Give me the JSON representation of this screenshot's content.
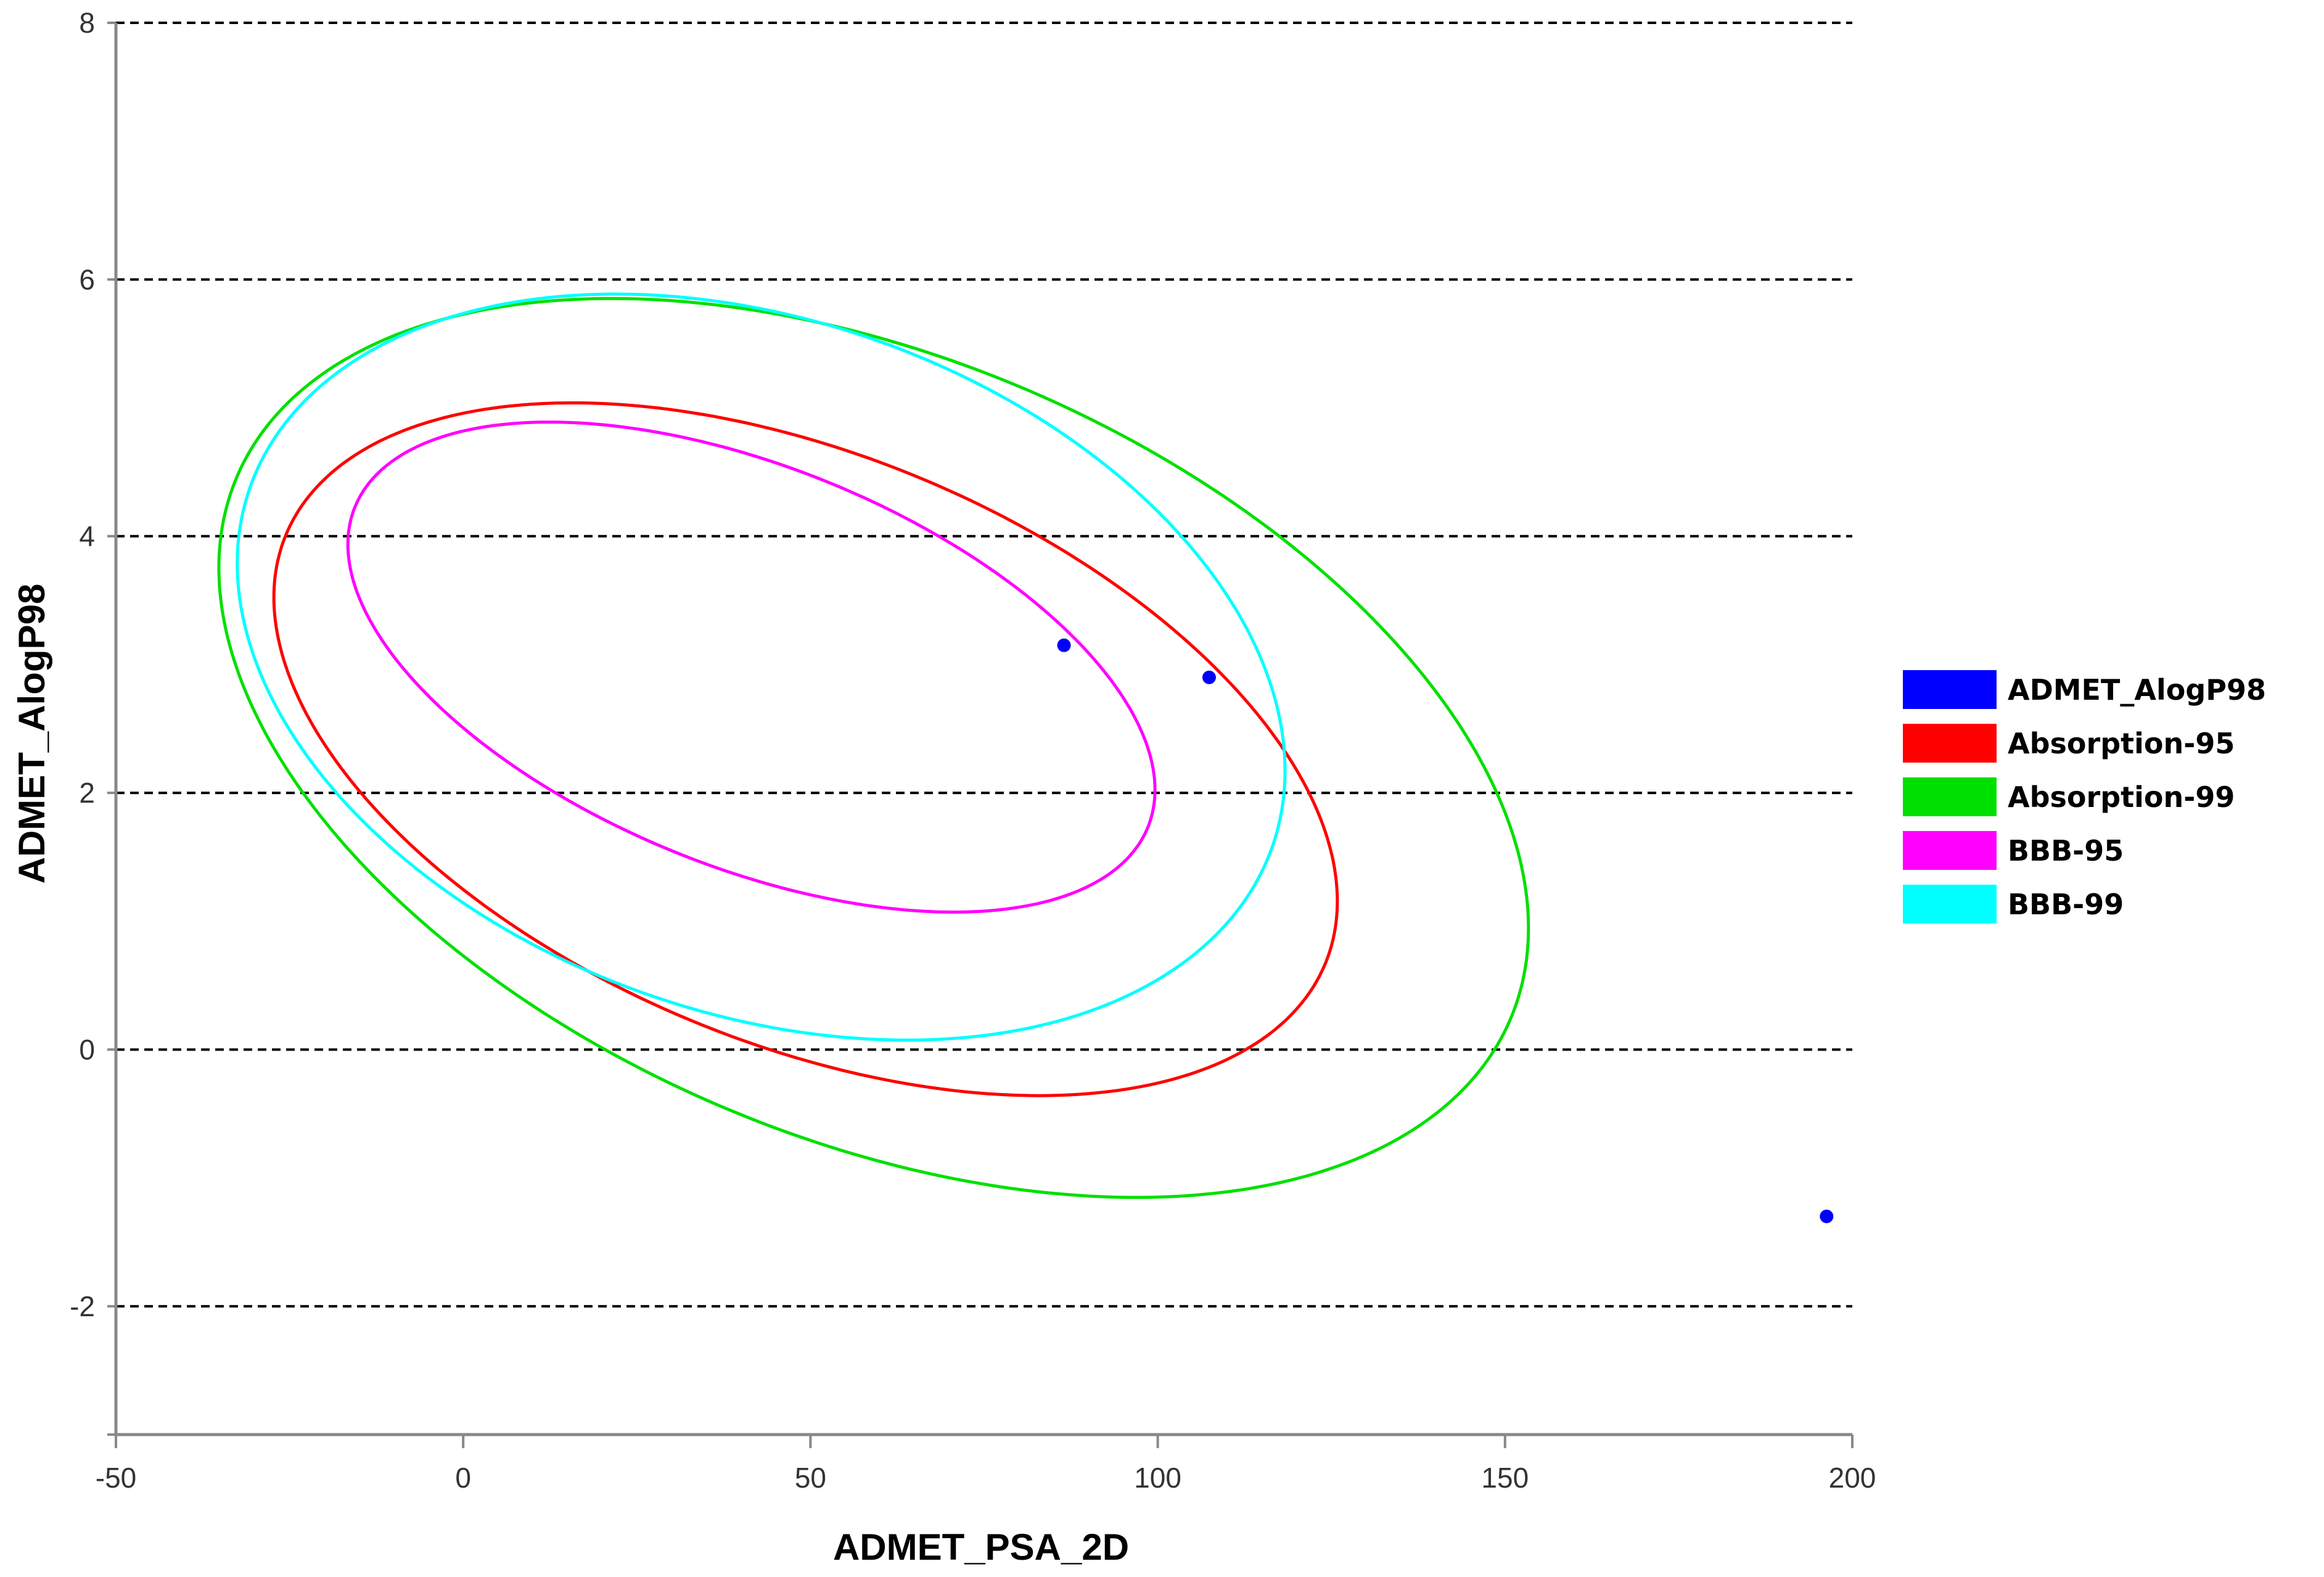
{
  "chart_data": {
    "type": "scatter",
    "xlabel": "ADMET_PSA_2D",
    "ylabel": "ADMET_AlogP98",
    "xlim": [
      -50,
      200
    ],
    "ylim": [
      -3,
      8
    ],
    "x_ticks": [
      -50,
      0,
      50,
      100,
      150,
      200
    ],
    "y_ticks": [
      -2,
      0,
      2,
      4,
      6,
      8
    ],
    "grid": "horizontal dashed",
    "legend_position": "right",
    "points": {
      "name": "ADMET_AlogP98",
      "color": "#0000ff",
      "x": [
        86.5,
        107.4,
        196.3
      ],
      "y": [
        3.15,
        2.9,
        -1.3
      ]
    },
    "ellipses": [
      {
        "name": "Absorption-95",
        "color": "#ff0000",
        "center": [
          49.3,
          2.34
        ],
        "semi_major": 84.4,
        "semi_minor": 2.2,
        "angle_deg": -31.5
      },
      {
        "name": "Absorption-99",
        "color": "#00e000",
        "center": [
          59.1,
          2.35
        ],
        "semi_major": 104.3,
        "semi_minor": 2.9,
        "angle_deg": -33.5
      },
      {
        "name": "BBB-95",
        "color": "#ff00ff",
        "center": [
          41.5,
          2.98
        ],
        "semi_major": 64.0,
        "semi_minor": 1.5,
        "angle_deg": -29.7
      },
      {
        "name": "BBB-99",
        "color": "#00ffff",
        "center": [
          42.9,
          2.98
        ],
        "semi_major": 81.0,
        "semi_minor": 2.6,
        "angle_deg": -32.2
      }
    ],
    "legend": [
      {
        "label": "ADMET_AlogP98",
        "color": "#0000ff"
      },
      {
        "label": "Absorption-95",
        "color": "#ff0000"
      },
      {
        "label": "Absorption-99",
        "color": "#00e000"
      },
      {
        "label": "BBB-95",
        "color": "#ff00ff"
      },
      {
        "label": "BBB-99",
        "color": "#00ffff"
      }
    ]
  }
}
